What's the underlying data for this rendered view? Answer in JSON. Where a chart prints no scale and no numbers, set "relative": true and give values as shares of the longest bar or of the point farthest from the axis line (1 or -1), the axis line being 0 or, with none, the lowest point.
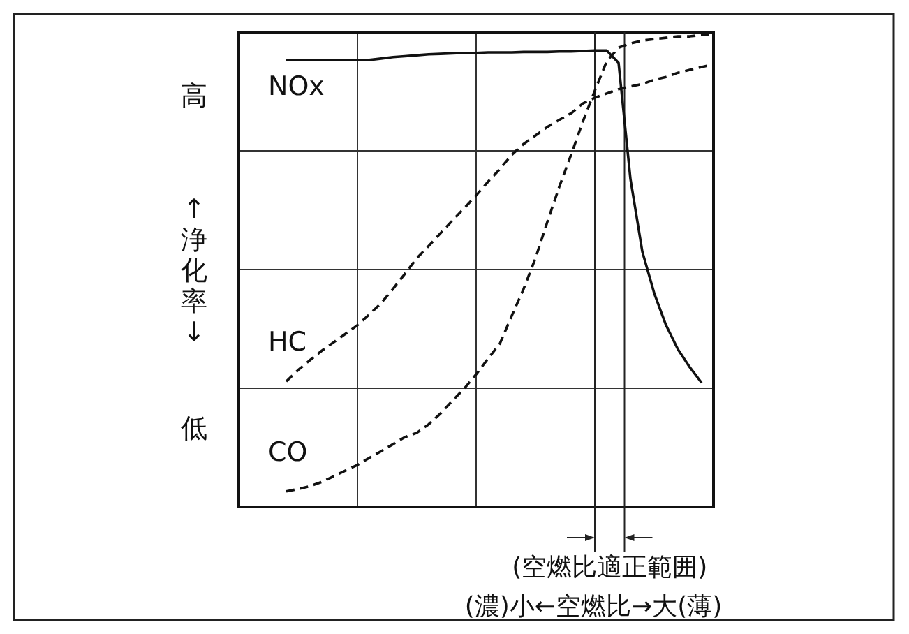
{
  "chart_data": {
    "type": "line",
    "relative": true,
    "grid": true,
    "marker": "none",
    "xlabel": "(濃)小←空燃比→大(薄)",
    "ylabel": "↑浄化率↓",
    "annotations": [
      "高",
      "低",
      "(空燃比適正範囲)"
    ],
    "categories": [
      null,
      null,
      null,
      null,
      null,
      null,
      null,
      null,
      null,
      null,
      null,
      null,
      null,
      null,
      null,
      null,
      null,
      null,
      null,
      null,
      null,
      null,
      null,
      null,
      null,
      null,
      null,
      null,
      null,
      null,
      null,
      null,
      null,
      null,
      null,
      null,
      null,
      null,
      null,
      null,
      null
    ],
    "series": [
      {
        "name": "NOx",
        "color": "#111111",
        "line_style": "solid",
        "values": [
          null,
          null,
          null,
          null,
          0.947,
          0.947,
          0.947,
          0.947,
          0.947,
          0.947,
          0.947,
          0.947,
          0.95,
          0.953,
          0.955,
          0.957,
          0.959,
          0.96,
          0.961,
          0.962,
          0.962,
          0.963,
          0.963,
          0.963,
          0.964,
          0.964,
          0.964,
          0.965,
          0.965,
          0.966,
          0.967,
          0.967,
          0.941,
          0.695,
          0.541,
          0.453,
          0.385,
          0.334,
          0.296,
          0.263,
          null
        ]
      },
      {
        "name": "HC",
        "color": "#111111",
        "line_style": "dashed",
        "values": [
          null,
          null,
          null,
          null,
          0.266,
          0.29,
          0.311,
          0.331,
          0.349,
          0.367,
          0.385,
          0.408,
          0.432,
          0.462,
          0.494,
          0.527,
          0.553,
          0.58,
          0.607,
          0.633,
          0.66,
          0.689,
          0.716,
          0.746,
          0.769,
          0.787,
          0.805,
          0.82,
          0.834,
          0.855,
          0.867,
          0.876,
          0.885,
          0.891,
          0.896,
          0.905,
          0.911,
          0.92,
          0.926,
          0.932,
          0.938
        ]
      },
      {
        "name": "CO",
        "color": "#111111",
        "line_style": "dashed",
        "values": [
          null,
          null,
          null,
          null,
          0.033,
          0.038,
          0.044,
          0.053,
          0.065,
          0.077,
          0.089,
          0.104,
          0.118,
          0.133,
          0.148,
          0.157,
          0.175,
          0.198,
          0.225,
          0.251,
          0.281,
          0.314,
          0.346,
          0.405,
          0.462,
          0.527,
          0.604,
          0.678,
          0.746,
          0.817,
          0.882,
          0.944,
          0.973,
          0.982,
          0.988,
          0.991,
          0.994,
          0.997,
          0.997,
          1,
          1
        ]
      }
    ]
  }
}
